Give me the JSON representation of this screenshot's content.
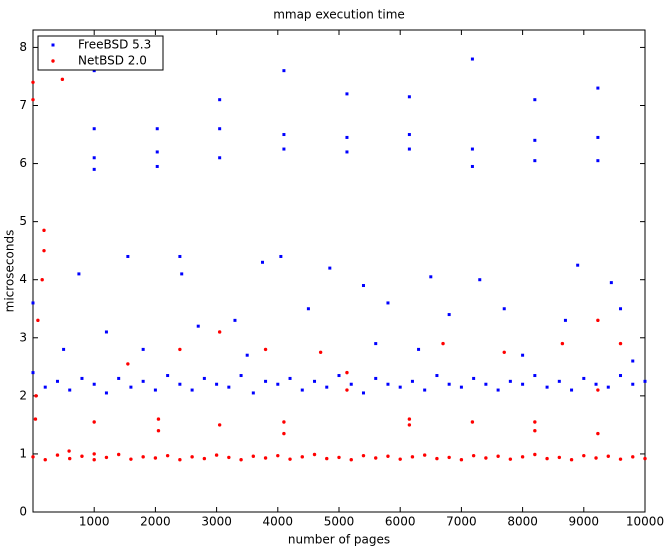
{
  "chart_data": {
    "type": "scatter",
    "title": "mmap execution time",
    "x_label": "number of pages",
    "y_label": "microseconds",
    "xlim": [
      0,
      10000
    ],
    "ylim": [
      0,
      8.3
    ],
    "xticks": [
      1000,
      2000,
      3000,
      4000,
      5000,
      6000,
      7000,
      8000,
      9000,
      10000
    ],
    "yticks": [
      0,
      1,
      2,
      3,
      4,
      5,
      6,
      7,
      8
    ],
    "legend": "upper left",
    "series": [
      {
        "name": "FreeBSD 5.3",
        "color": "#0000ff",
        "x": [
          0,
          200,
          400,
          600,
          800,
          1000,
          1200,
          1400,
          1600,
          1800,
          2000,
          2200,
          2400,
          2600,
          2800,
          3000,
          3200,
          3400,
          3600,
          3800,
          4000,
          4200,
          4400,
          4600,
          4800,
          5000,
          5200,
          5400,
          5600,
          5800,
          6000,
          6200,
          6400,
          6600,
          6800,
          7000,
          7200,
          7400,
          7600,
          7800,
          8000,
          8200,
          8400,
          8600,
          8800,
          9000,
          9200,
          9400,
          9600,
          9800,
          10000,
          1000,
          1000,
          1000,
          1000,
          2030,
          2030,
          2030,
          3050,
          3050,
          3050,
          4100,
          4100,
          4100,
          5130,
          5130,
          5130,
          6150,
          6150,
          6150,
          7180,
          7180,
          7180,
          8200,
          8200,
          8200,
          9230,
          9230,
          9230,
          0,
          750,
          1550,
          2400,
          2430,
          3750,
          4050,
          4850,
          5400,
          6500,
          7300,
          8900,
          9450,
          1200,
          2700,
          3300,
          4500,
          5800,
          6800,
          7700,
          8700,
          9600,
          500,
          1800,
          3500,
          5600,
          6300,
          8000,
          9800
        ],
        "values": [
          2.4,
          2.15,
          2.25,
          2.1,
          2.3,
          2.2,
          2.05,
          2.3,
          2.15,
          2.25,
          2.1,
          2.35,
          2.2,
          2.1,
          2.3,
          2.2,
          2.15,
          2.35,
          2.05,
          2.25,
          2.2,
          2.3,
          2.1,
          2.25,
          2.15,
          2.35,
          2.2,
          2.05,
          2.3,
          2.2,
          2.15,
          2.25,
          2.1,
          2.35,
          2.2,
          2.15,
          2.3,
          2.2,
          2.1,
          2.25,
          2.2,
          2.35,
          2.15,
          2.25,
          2.1,
          2.3,
          2.2,
          2.15,
          2.35,
          2.2,
          2.25,
          7.6,
          6.6,
          6.1,
          5.9,
          6.6,
          6.2,
          5.95,
          7.1,
          6.6,
          6.1,
          7.6,
          6.5,
          6.25,
          7.2,
          6.45,
          6.2,
          7.15,
          6.5,
          6.25,
          7.8,
          6.25,
          5.95,
          7.1,
          6.4,
          6.05,
          7.3,
          6.45,
          6.05,
          3.6,
          4.1,
          4.4,
          4.4,
          4.1,
          4.3,
          4.4,
          4.2,
          3.9,
          4.05,
          4.0,
          4.25,
          3.95,
          3.1,
          3.2,
          3.3,
          3.5,
          3.6,
          3.4,
          3.5,
          3.3,
          3.5,
          2.8,
          2.8,
          2.7,
          2.9,
          2.8,
          2.7,
          2.6
        ]
      },
      {
        "name": "NetBSD 2.0",
        "color": "#ff0000",
        "x": [
          0,
          200,
          400,
          600,
          800,
          1000,
          1200,
          1400,
          1600,
          1800,
          2000,
          2200,
          2400,
          2600,
          2800,
          3000,
          3200,
          3400,
          3600,
          3800,
          4000,
          4200,
          4400,
          4600,
          4800,
          5000,
          5200,
          5400,
          5600,
          5800,
          6000,
          6200,
          6400,
          6600,
          6800,
          7000,
          7200,
          7400,
          7600,
          7800,
          8000,
          8200,
          8400,
          8600,
          8800,
          9000,
          9200,
          9400,
          9600,
          9800,
          10000,
          0,
          0,
          480,
          180,
          180,
          150,
          80,
          50,
          40,
          1000,
          1000,
          2050,
          2050,
          3050,
          3050,
          4100,
          4100,
          5130,
          5130,
          6150,
          6150,
          7180,
          8200,
          8200,
          9230,
          9230,
          2400,
          3800,
          4700,
          6700,
          7700,
          8650,
          9600,
          9230,
          1550,
          590
        ],
        "values": [
          0.95,
          0.9,
          0.98,
          0.92,
          0.96,
          0.9,
          0.94,
          0.99,
          0.91,
          0.95,
          0.93,
          0.97,
          0.9,
          0.95,
          0.92,
          0.98,
          0.94,
          0.9,
          0.96,
          0.93,
          0.97,
          0.91,
          0.95,
          0.99,
          0.92,
          0.94,
          0.9,
          0.97,
          0.93,
          0.96,
          0.91,
          0.95,
          0.98,
          0.92,
          0.94,
          0.9,
          0.97,
          0.93,
          0.96,
          0.91,
          0.95,
          0.99,
          0.92,
          0.94,
          0.9,
          0.97,
          0.93,
          0.96,
          0.91,
          0.95,
          0.92,
          7.4,
          7.1,
          7.45,
          4.85,
          4.5,
          4.0,
          3.3,
          2.0,
          1.6,
          1.55,
          1.0,
          1.4,
          1.6,
          1.5,
          3.1,
          1.35,
          1.55,
          2.1,
          2.4,
          1.5,
          1.6,
          1.55,
          1.4,
          1.55,
          1.35,
          3.3,
          2.8,
          2.8,
          2.75,
          2.9,
          2.75,
          2.9,
          2.9,
          2.1,
          2.55,
          1.05
        ]
      }
    ]
  }
}
